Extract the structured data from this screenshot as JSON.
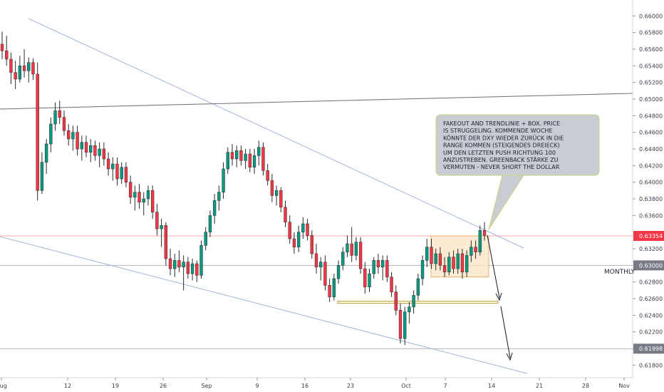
{
  "chart_data": {
    "type": "candlestick",
    "y_axis": {
      "position": "right",
      "ticks": [
        0.66,
        0.658,
        0.656,
        0.654,
        0.652,
        0.65,
        0.648,
        0.646,
        0.644,
        0.642,
        0.64,
        0.638,
        0.636,
        0.632,
        0.628,
        0.626,
        0.624,
        0.622,
        0.62,
        0.618
      ],
      "tick_labels": [
        "0.66000",
        "0.65800",
        "0.65600",
        "0.65400",
        "0.65200",
        "0.65000",
        "0.64800",
        "0.64600",
        "0.64400",
        "0.64200",
        "0.64000",
        "0.63800",
        "0.63600",
        "0.63200",
        "0.62800",
        "0.62600",
        "0.62400",
        "0.62200",
        "0.62000",
        "0.61800"
      ],
      "range": [
        0.617,
        0.6614
      ]
    },
    "x_axis": {
      "tick_labels": [
        "Aug",
        "12",
        "19",
        "26",
        "Sep",
        "9",
        "16",
        "23",
        "Oct",
        "7",
        "14",
        "21",
        "28",
        "Nov"
      ]
    },
    "price_tags": [
      {
        "label": "0.63354",
        "value": 0.63354,
        "color": "#f23645"
      },
      {
        "label": "0.63000",
        "value": 0.63,
        "color": "#787b86"
      },
      {
        "label": "0.61998",
        "value": 0.61998,
        "color": "#787b86"
      }
    ],
    "horizontal_lines": [
      {
        "value": 0.63354,
        "color": "#f7a8ac"
      },
      {
        "value": 0.63,
        "color": "#b2b5be"
      },
      {
        "value": 0.61998,
        "color": "#b2b5be"
      }
    ],
    "level_label": "MONTHLY",
    "annotation": {
      "lines": [
        "FAKEOUT AND TRENDLINIE + BOX. PRICE",
        "IS STRUGGELING. KOMMENDE WOCHE",
        "KÖNNTE DER DXY WIEDER ZURÜCK IN DIE",
        "RANGE KOMMEN (STEIGENDES DREIECK)",
        "UM DEN LETZTEN PUSH RICHTUNG 100",
        "ANZUSTREBEN. GREENBACK STÄRKE ZU",
        "VERMUTEN - NEVER SHORT THE DOLLAR"
      ]
    },
    "box": {
      "top": 0.63354,
      "bottom": 0.6286,
      "color": "#f7c98b"
    },
    "support_zone": {
      "top": 0.6257,
      "bottom": 0.62545
    },
    "candles": [
      {
        "o": 0.6566,
        "h": 0.6581,
        "l": 0.6548,
        "c": 0.6558
      },
      {
        "o": 0.6558,
        "h": 0.6576,
        "l": 0.654,
        "c": 0.6548
      },
      {
        "o": 0.6548,
        "h": 0.6556,
        "l": 0.6518,
        "c": 0.6532
      },
      {
        "o": 0.6532,
        "h": 0.6546,
        "l": 0.6512,
        "c": 0.6524
      },
      {
        "o": 0.6524,
        "h": 0.6552,
        "l": 0.652,
        "c": 0.654
      },
      {
        "o": 0.654,
        "h": 0.656,
        "l": 0.6526,
        "c": 0.6534
      },
      {
        "o": 0.6534,
        "h": 0.655,
        "l": 0.652,
        "c": 0.6544
      },
      {
        "o": 0.6544,
        "h": 0.6549,
        "l": 0.6523,
        "c": 0.653
      },
      {
        "o": 0.653,
        "h": 0.6544,
        "l": 0.6378,
        "c": 0.639
      },
      {
        "o": 0.639,
        "h": 0.6436,
        "l": 0.6386,
        "c": 0.6424
      },
      {
        "o": 0.6424,
        "h": 0.6452,
        "l": 0.641,
        "c": 0.6446
      },
      {
        "o": 0.6446,
        "h": 0.6478,
        "l": 0.6436,
        "c": 0.647
      },
      {
        "o": 0.647,
        "h": 0.6496,
        "l": 0.6462,
        "c": 0.6486
      },
      {
        "o": 0.6486,
        "h": 0.6498,
        "l": 0.647,
        "c": 0.6478
      },
      {
        "o": 0.6478,
        "h": 0.6486,
        "l": 0.6456,
        "c": 0.6462
      },
      {
        "o": 0.6462,
        "h": 0.647,
        "l": 0.6444,
        "c": 0.6452
      },
      {
        "o": 0.6452,
        "h": 0.6468,
        "l": 0.6438,
        "c": 0.646
      },
      {
        "o": 0.646,
        "h": 0.6468,
        "l": 0.6432,
        "c": 0.644
      },
      {
        "o": 0.644,
        "h": 0.6456,
        "l": 0.6426,
        "c": 0.6448
      },
      {
        "o": 0.6448,
        "h": 0.6456,
        "l": 0.643,
        "c": 0.6436
      },
      {
        "o": 0.6436,
        "h": 0.6452,
        "l": 0.6424,
        "c": 0.6444
      },
      {
        "o": 0.6444,
        "h": 0.645,
        "l": 0.6426,
        "c": 0.6432
      },
      {
        "o": 0.6432,
        "h": 0.6448,
        "l": 0.6418,
        "c": 0.644
      },
      {
        "o": 0.644,
        "h": 0.6448,
        "l": 0.642,
        "c": 0.6428
      },
      {
        "o": 0.6428,
        "h": 0.6436,
        "l": 0.6408,
        "c": 0.6416
      },
      {
        "o": 0.6416,
        "h": 0.643,
        "l": 0.6402,
        "c": 0.6422
      },
      {
        "o": 0.6422,
        "h": 0.643,
        "l": 0.6396,
        "c": 0.6404
      },
      {
        "o": 0.6404,
        "h": 0.6424,
        "l": 0.6398,
        "c": 0.6418
      },
      {
        "o": 0.6418,
        "h": 0.6424,
        "l": 0.6394,
        "c": 0.64
      },
      {
        "o": 0.64,
        "h": 0.6408,
        "l": 0.6374,
        "c": 0.6382
      },
      {
        "o": 0.6382,
        "h": 0.6396,
        "l": 0.6366,
        "c": 0.6388
      },
      {
        "o": 0.6388,
        "h": 0.6398,
        "l": 0.6368,
        "c": 0.6376
      },
      {
        "o": 0.6376,
        "h": 0.6388,
        "l": 0.636,
        "c": 0.638
      },
      {
        "o": 0.638,
        "h": 0.6396,
        "l": 0.6372,
        "c": 0.639
      },
      {
        "o": 0.639,
        "h": 0.6396,
        "l": 0.6356,
        "c": 0.6364
      },
      {
        "o": 0.6364,
        "h": 0.6374,
        "l": 0.6336,
        "c": 0.6344
      },
      {
        "o": 0.6344,
        "h": 0.6356,
        "l": 0.6322,
        "c": 0.6348
      },
      {
        "o": 0.6348,
        "h": 0.6352,
        "l": 0.63,
        "c": 0.6308
      },
      {
        "o": 0.6308,
        "h": 0.632,
        "l": 0.6288,
        "c": 0.6296
      },
      {
        "o": 0.6296,
        "h": 0.6314,
        "l": 0.6286,
        "c": 0.6306
      },
      {
        "o": 0.6306,
        "h": 0.6318,
        "l": 0.6292,
        "c": 0.6298
      },
      {
        "o": 0.6298,
        "h": 0.6312,
        "l": 0.627,
        "c": 0.6304
      },
      {
        "o": 0.6304,
        "h": 0.631,
        "l": 0.6284,
        "c": 0.629
      },
      {
        "o": 0.629,
        "h": 0.6308,
        "l": 0.6282,
        "c": 0.6302
      },
      {
        "o": 0.6302,
        "h": 0.6306,
        "l": 0.628,
        "c": 0.6288
      },
      {
        "o": 0.6288,
        "h": 0.633,
        "l": 0.6284,
        "c": 0.6324
      },
      {
        "o": 0.6324,
        "h": 0.6346,
        "l": 0.6318,
        "c": 0.634
      },
      {
        "o": 0.634,
        "h": 0.6366,
        "l": 0.6334,
        "c": 0.636
      },
      {
        "o": 0.636,
        "h": 0.6386,
        "l": 0.635,
        "c": 0.6378
      },
      {
        "o": 0.6378,
        "h": 0.6396,
        "l": 0.6366,
        "c": 0.6388
      },
      {
        "o": 0.6388,
        "h": 0.6424,
        "l": 0.638,
        "c": 0.6416
      },
      {
        "o": 0.6416,
        "h": 0.6442,
        "l": 0.641,
        "c": 0.6436
      },
      {
        "o": 0.6436,
        "h": 0.6446,
        "l": 0.642,
        "c": 0.6428
      },
      {
        "o": 0.6428,
        "h": 0.6444,
        "l": 0.6418,
        "c": 0.6438
      },
      {
        "o": 0.6438,
        "h": 0.6444,
        "l": 0.642,
        "c": 0.6426
      },
      {
        "o": 0.6426,
        "h": 0.644,
        "l": 0.6416,
        "c": 0.6434
      },
      {
        "o": 0.6434,
        "h": 0.644,
        "l": 0.6412,
        "c": 0.6418
      },
      {
        "o": 0.6418,
        "h": 0.644,
        "l": 0.641,
        "c": 0.6432
      },
      {
        "o": 0.6432,
        "h": 0.645,
        "l": 0.642,
        "c": 0.6442
      },
      {
        "o": 0.6442,
        "h": 0.6448,
        "l": 0.6408,
        "c": 0.6414
      },
      {
        "o": 0.6414,
        "h": 0.6422,
        "l": 0.6396,
        "c": 0.6402
      },
      {
        "o": 0.6402,
        "h": 0.641,
        "l": 0.6376,
        "c": 0.6384
      },
      {
        "o": 0.6384,
        "h": 0.6396,
        "l": 0.6372,
        "c": 0.639
      },
      {
        "o": 0.639,
        "h": 0.6394,
        "l": 0.6364,
        "c": 0.637
      },
      {
        "o": 0.637,
        "h": 0.6378,
        "l": 0.6346,
        "c": 0.6352
      },
      {
        "o": 0.6352,
        "h": 0.636,
        "l": 0.6326,
        "c": 0.6332
      },
      {
        "o": 0.6332,
        "h": 0.634,
        "l": 0.6314,
        "c": 0.6322
      },
      {
        "o": 0.6322,
        "h": 0.6348,
        "l": 0.6316,
        "c": 0.634
      },
      {
        "o": 0.634,
        "h": 0.6358,
        "l": 0.6332,
        "c": 0.635
      },
      {
        "o": 0.635,
        "h": 0.6356,
        "l": 0.633,
        "c": 0.6336
      },
      {
        "o": 0.6336,
        "h": 0.6342,
        "l": 0.6308,
        "c": 0.6314
      },
      {
        "o": 0.6314,
        "h": 0.6326,
        "l": 0.629,
        "c": 0.6298
      },
      {
        "o": 0.6298,
        "h": 0.631,
        "l": 0.6282,
        "c": 0.6304
      },
      {
        "o": 0.6304,
        "h": 0.6312,
        "l": 0.627,
        "c": 0.6276
      },
      {
        "o": 0.6276,
        "h": 0.6284,
        "l": 0.6256,
        "c": 0.6262
      },
      {
        "o": 0.6262,
        "h": 0.629,
        "l": 0.6258,
        "c": 0.6284
      },
      {
        "o": 0.6284,
        "h": 0.6306,
        "l": 0.6278,
        "c": 0.63
      },
      {
        "o": 0.63,
        "h": 0.6322,
        "l": 0.6294,
        "c": 0.6316
      },
      {
        "o": 0.6316,
        "h": 0.6336,
        "l": 0.631,
        "c": 0.6326
      },
      {
        "o": 0.6326,
        "h": 0.6346,
        "l": 0.6304,
        "c": 0.6312
      },
      {
        "o": 0.6312,
        "h": 0.6334,
        "l": 0.6306,
        "c": 0.6328
      },
      {
        "o": 0.6328,
        "h": 0.6334,
        "l": 0.629,
        "c": 0.6296
      },
      {
        "o": 0.6296,
        "h": 0.6304,
        "l": 0.6266,
        "c": 0.6274
      },
      {
        "o": 0.6274,
        "h": 0.6296,
        "l": 0.6268,
        "c": 0.629
      },
      {
        "o": 0.629,
        "h": 0.631,
        "l": 0.6284,
        "c": 0.6306
      },
      {
        "o": 0.6306,
        "h": 0.6314,
        "l": 0.629,
        "c": 0.6298
      },
      {
        "o": 0.6298,
        "h": 0.6312,
        "l": 0.6282,
        "c": 0.6306
      },
      {
        "o": 0.6306,
        "h": 0.6312,
        "l": 0.628,
        "c": 0.6286
      },
      {
        "o": 0.6286,
        "h": 0.6292,
        "l": 0.6262,
        "c": 0.6268
      },
      {
        "o": 0.6268,
        "h": 0.6276,
        "l": 0.624,
        "c": 0.6246
      },
      {
        "o": 0.6246,
        "h": 0.6254,
        "l": 0.6206,
        "c": 0.6212
      },
      {
        "o": 0.6212,
        "h": 0.625,
        "l": 0.6204,
        "c": 0.6244
      },
      {
        "o": 0.6244,
        "h": 0.6256,
        "l": 0.623,
        "c": 0.625
      },
      {
        "o": 0.625,
        "h": 0.627,
        "l": 0.6242,
        "c": 0.6264
      },
      {
        "o": 0.6264,
        "h": 0.629,
        "l": 0.6258,
        "c": 0.6284
      },
      {
        "o": 0.6284,
        "h": 0.6312,
        "l": 0.6276,
        "c": 0.6306
      },
      {
        "o": 0.6306,
        "h": 0.6332,
        "l": 0.6298,
        "c": 0.6322
      },
      {
        "o": 0.6322,
        "h": 0.6332,
        "l": 0.6296,
        "c": 0.6302
      },
      {
        "o": 0.6302,
        "h": 0.632,
        "l": 0.6294,
        "c": 0.6314
      },
      {
        "o": 0.6314,
        "h": 0.6322,
        "l": 0.6294,
        "c": 0.63
      },
      {
        "o": 0.63,
        "h": 0.631,
        "l": 0.6286,
        "c": 0.6292
      },
      {
        "o": 0.6292,
        "h": 0.6316,
        "l": 0.6288,
        "c": 0.631
      },
      {
        "o": 0.631,
        "h": 0.6318,
        "l": 0.629,
        "c": 0.6296
      },
      {
        "o": 0.6296,
        "h": 0.632,
        "l": 0.629,
        "c": 0.6314
      },
      {
        "o": 0.6314,
        "h": 0.632,
        "l": 0.6284,
        "c": 0.6292
      },
      {
        "o": 0.6292,
        "h": 0.6318,
        "l": 0.6286,
        "c": 0.6312
      },
      {
        "o": 0.6312,
        "h": 0.633,
        "l": 0.6304,
        "c": 0.6322
      },
      {
        "o": 0.6322,
        "h": 0.633,
        "l": 0.6308,
        "c": 0.6316
      },
      {
        "o": 0.6316,
        "h": 0.6348,
        "l": 0.6312,
        "c": 0.6342
      },
      {
        "o": 0.6342,
        "h": 0.6352,
        "l": 0.633,
        "c": 0.6336
      }
    ],
    "grid": false
  }
}
